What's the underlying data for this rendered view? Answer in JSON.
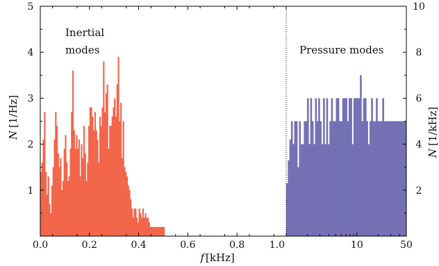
{
  "chart_data": {
    "type": "bar",
    "xlabel_var": "f",
    "xlabel_unit": "[kHz]",
    "ylabel_left_var": "N",
    "ylabel_left_unit": "[1/Hz]",
    "ylabel_right_var": "N",
    "ylabel_right_unit": "[1/kHz]",
    "annotations": {
      "inertial_line1": "Inertial",
      "inertial_line2": "modes",
      "pressure": "Pressure modes"
    },
    "left_panel": {
      "xlim": [
        0.0,
        1.0
      ],
      "ylim": [
        0,
        5
      ],
      "xticks": [
        "0.0",
        "0.2",
        "0.4",
        "0.6",
        "0.8",
        "1.0"
      ],
      "yticks": [
        "1",
        "2",
        "3",
        "4",
        "5"
      ],
      "bin_width": 0.005,
      "color": "#f2664b",
      "values": [
        1.4,
        1.6,
        2.1,
        2.7,
        1.4,
        0.9,
        1.3,
        0.7,
        0.5,
        1.1,
        1.5,
        2.1,
        2.7,
        2.4,
        1.8,
        1.5,
        1.7,
        1.0,
        1.2,
        1.9,
        2.2,
        1.6,
        1.2,
        1.3,
        1.9,
        2.7,
        3.6,
        2.3,
        1.9,
        2.2,
        1.9,
        2.1,
        1.3,
        2.0,
        1.7,
        2.4,
        1.8,
        1.2,
        1.6,
        2.4,
        2.8,
        2.8,
        2.6,
        2.3,
        2.7,
        2.3,
        2.1,
        1.6,
        2.6,
        2.4,
        2.8,
        3.8,
        2.7,
        3.1,
        3.3,
        1.9,
        2.4,
        2.4,
        2.6,
        2.8,
        3.0,
        2.6,
        3.3,
        3.9,
        2.5,
        2.9,
        1.7,
        2.5,
        1.5,
        1.4,
        1.3,
        1.1,
        1.0,
        0.8,
        0.6,
        0.4,
        0.6,
        0.6,
        0.4,
        0.3,
        0.6,
        0.5,
        0.4,
        0.6,
        0.4,
        0.5,
        0.4,
        0.4,
        0.3,
        0.2,
        0.2,
        0.2,
        0.2,
        0.2,
        0.2,
        0.2,
        0.2,
        0.2,
        0.2,
        0.2,
        0.2
      ]
    },
    "right_panel": {
      "scale": "log",
      "xlim": [
        1.0,
        50
      ],
      "ylim": [
        0,
        10
      ],
      "xticks": [
        "1.0",
        "10",
        "50"
      ],
      "yticks": [
        "2",
        "4",
        "6",
        "8",
        "10"
      ],
      "color": "#7570b4",
      "values": [
        2.3,
        3.3,
        4.2,
        5.0,
        4.0,
        5.0,
        5.0,
        3.0,
        5.0,
        4.0,
        4.0,
        5.0,
        5.0,
        6.0,
        4.0,
        6.0,
        5.0,
        4.0,
        6.0,
        5.0,
        6.0,
        5.0,
        4.0,
        6.0,
        4.0,
        6.0,
        4.0,
        5.0,
        6.0,
        5.0,
        5.0,
        6.0,
        6.0,
        5.0,
        5.0,
        6.0,
        6.0,
        6.0,
        5.0,
        6.0,
        6.0,
        4.0,
        6.0,
        6.0,
        6.0,
        6.0,
        7.0,
        5.0,
        6.0,
        6.0,
        5.0,
        4.0,
        5.0,
        6.0,
        5.0,
        5.0,
        6.0,
        5.0,
        5.0,
        5.0,
        6.0,
        5.0,
        5.0,
        5.0,
        5.0,
        5.0,
        5.0,
        5.0,
        5.0,
        5.0,
        5.0,
        5.0,
        5.0,
        5.0,
        5.0
      ]
    }
  }
}
